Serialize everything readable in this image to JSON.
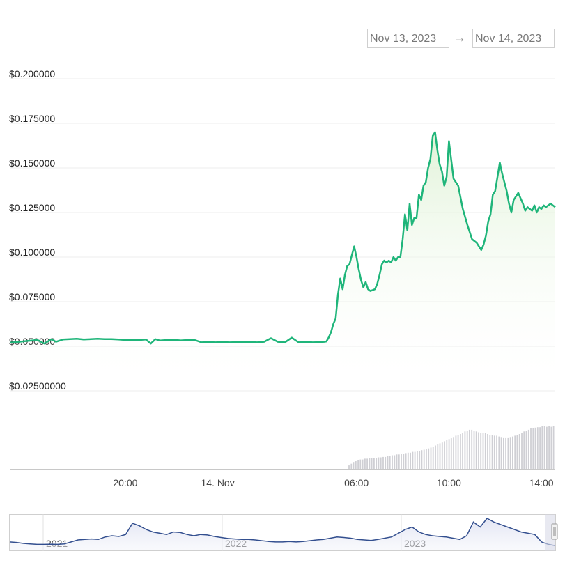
{
  "date_range": {
    "from": "Nov 13, 2023",
    "separator": "→",
    "to": "Nov 14, 2023"
  },
  "colors": {
    "price_line": "#1fb57a",
    "price_fill_top": "#dff2d6",
    "volume_bar": "#cfcfd4",
    "navigator_line": "#334f8f",
    "grid": "#ececec"
  },
  "chart_data": [
    {
      "type": "line",
      "name": "price",
      "ylim": [
        0.025,
        0.2
      ],
      "y_ticks": [
        "$0.200000",
        "$0.175000",
        "$0.150000",
        "$0.125000",
        "$0.100000",
        "$0.075000",
        "$0.050000",
        "$0.02500000"
      ],
      "y_tick_values": [
        0.2,
        0.175,
        0.15,
        0.125,
        0.1,
        0.075,
        0.05,
        0.025
      ],
      "x_ticks": [
        "20:00",
        "14. Nov",
        "06:00",
        "10:00",
        "14:00"
      ],
      "x_tick_values": [
        20,
        24,
        30,
        34,
        38
      ],
      "xlim": [
        15.0,
        38.6
      ],
      "x": [
        15.0,
        15.4,
        15.8,
        16.2,
        16.5,
        16.8,
        17.0,
        17.3,
        17.6,
        17.9,
        18.2,
        18.5,
        18.8,
        19.1,
        19.4,
        19.7,
        20.0,
        20.3,
        20.6,
        20.9,
        21.1,
        21.3,
        21.5,
        21.8,
        22.1,
        22.4,
        22.7,
        23.0,
        23.3,
        23.6,
        23.9,
        24.2,
        24.5,
        24.8,
        25.1,
        25.4,
        25.7,
        26.0,
        26.3,
        26.6,
        26.9,
        27.2,
        27.5,
        27.8,
        28.1,
        28.4,
        28.5,
        28.6,
        28.7,
        28.8,
        28.9,
        29.0,
        29.1,
        29.2,
        29.3,
        29.4,
        29.5,
        29.6,
        29.7,
        29.8,
        29.9,
        30.0,
        30.1,
        30.2,
        30.3,
        30.4,
        30.5,
        30.6,
        30.7,
        30.8,
        30.9,
        31.0,
        31.1,
        31.2,
        31.3,
        31.4,
        31.5,
        31.6,
        31.7,
        31.8,
        31.9,
        32.0,
        32.1,
        32.2,
        32.3,
        32.4,
        32.5,
        32.6,
        32.7,
        32.8,
        32.9,
        33.0,
        33.1,
        33.2,
        33.3,
        33.4,
        33.5,
        33.6,
        33.7,
        33.8,
        33.9,
        34.0,
        34.2,
        34.4,
        34.6,
        34.8,
        35.0,
        35.2,
        35.4,
        35.5,
        35.6,
        35.7,
        35.8,
        35.9,
        36.0,
        36.1,
        36.2,
        36.3,
        36.4,
        36.5,
        36.6,
        36.7,
        36.8,
        36.9,
        37.0,
        37.1,
        37.2,
        37.3,
        37.4,
        37.5,
        37.6,
        37.7,
        37.8,
        37.9,
        38.0,
        38.1,
        38.2,
        38.3,
        38.4,
        38.5,
        38.6
      ],
      "y": [
        0.052,
        0.0525,
        0.053,
        0.0535,
        0.0515,
        0.054,
        0.0525,
        0.0538,
        0.054,
        0.0542,
        0.0538,
        0.054,
        0.0542,
        0.054,
        0.054,
        0.0538,
        0.0535,
        0.0536,
        0.0535,
        0.0538,
        0.0515,
        0.054,
        0.0532,
        0.0535,
        0.0536,
        0.0533,
        0.0535,
        0.0535,
        0.0522,
        0.0524,
        0.0522,
        0.0524,
        0.0522,
        0.0523,
        0.0525,
        0.0524,
        0.0522,
        0.0525,
        0.0545,
        0.0525,
        0.0522,
        0.0548,
        0.0522,
        0.0525,
        0.0522,
        0.0523,
        0.0524,
        0.0525,
        0.0527,
        0.055,
        0.058,
        0.0625,
        0.0655,
        0.079,
        0.088,
        0.082,
        0.09,
        0.095,
        0.096,
        0.101,
        0.106,
        0.1,
        0.093,
        0.087,
        0.083,
        0.086,
        0.082,
        0.081,
        0.0815,
        0.082,
        0.085,
        0.09,
        0.096,
        0.098,
        0.097,
        0.098,
        0.097,
        0.1,
        0.098,
        0.1,
        0.1,
        0.11,
        0.124,
        0.115,
        0.13,
        0.118,
        0.122,
        0.122,
        0.135,
        0.132,
        0.14,
        0.142,
        0.15,
        0.155,
        0.168,
        0.17,
        0.16,
        0.152,
        0.148,
        0.14,
        0.145,
        0.165,
        0.144,
        0.14,
        0.127,
        0.118,
        0.11,
        0.108,
        0.104,
        0.107,
        0.112,
        0.12,
        0.124,
        0.135,
        0.137,
        0.145,
        0.153,
        0.147,
        0.142,
        0.137,
        0.13,
        0.125,
        0.132,
        0.134,
        0.136,
        0.133,
        0.13,
        0.126,
        0.128,
        0.127,
        0.126,
        0.129,
        0.125,
        0.128,
        0.127,
        0.129,
        0.128,
        0.129,
        0.13,
        0.129,
        0.128
      ]
    },
    {
      "type": "bar",
      "name": "volume",
      "relative_values": [
        0.0,
        0.0,
        0.0,
        0.0,
        0.0,
        0.0,
        0.0,
        0.0,
        0.0,
        0.0,
        0.0,
        0.0,
        0.0,
        0.0,
        0.0,
        0.0,
        0.0,
        0.0,
        0.0,
        0.0,
        0.0,
        0.0,
        0.0,
        0.0,
        0.0,
        0.0,
        0.0,
        0.0,
        0.0,
        0.0,
        0.0,
        0.0,
        0.0,
        0.0,
        0.0,
        0.0,
        0.0,
        0.0,
        0.0,
        0.0,
        0.0,
        0.0,
        0.0,
        0.0,
        0.0,
        0.0,
        0.0,
        0.0,
        0.0,
        0.0,
        0.0,
        0.0,
        0.0,
        0.0,
        0.0,
        0.0,
        0.0,
        0.0,
        0.0,
        0.0,
        0.0,
        0.0,
        0.0,
        0.0,
        0.0,
        0.0,
        0.0,
        0.0,
        0.0,
        0.0,
        0.0,
        0.0,
        0.0,
        0.0,
        0.0,
        0.0,
        0.0,
        0.0,
        0.0,
        0.0,
        0.0,
        0.0,
        0.0,
        0.0,
        0.0,
        0.0,
        0.0,
        0.0,
        0.0,
        0.0,
        0.0,
        0.0,
        0.0,
        0.0,
        0.0,
        0.0,
        0.0,
        0.0,
        0.0,
        0.0,
        0.0,
        0.0,
        0.0,
        0.0,
        0.0,
        0.0,
        0.0,
        0.0,
        0.0,
        0.0,
        0.0,
        0.0,
        0.0,
        0.0,
        0.0,
        0.0,
        0.0,
        0.0,
        0.0,
        0.0,
        0.0,
        0.0,
        0.0,
        0.0,
        0.0,
        0.0,
        0.0,
        0.0,
        0.0,
        0.0,
        0.0,
        0.0,
        0.0,
        0.0,
        0.0,
        0.0,
        0.0,
        0.0,
        0.0,
        0.0,
        0.0,
        0.0,
        0.0,
        0.0,
        0.0,
        0.0,
        0.0,
        0.0,
        0.0,
        0.08,
        0.12,
        0.16,
        0.18,
        0.2,
        0.22,
        0.22,
        0.24,
        0.24,
        0.25,
        0.25,
        0.26,
        0.26,
        0.27,
        0.27,
        0.28,
        0.28,
        0.3,
        0.3,
        0.32,
        0.32,
        0.34,
        0.34,
        0.36,
        0.36,
        0.37,
        0.38,
        0.38,
        0.4,
        0.4,
        0.42,
        0.42,
        0.44,
        0.45,
        0.46,
        0.48,
        0.5,
        0.52,
        0.55,
        0.58,
        0.6,
        0.62,
        0.65,
        0.68,
        0.7,
        0.72,
        0.75,
        0.78,
        0.8,
        0.82,
        0.85,
        0.88,
        0.9,
        0.92,
        0.92,
        0.9,
        0.88,
        0.86,
        0.85,
        0.84,
        0.84,
        0.82,
        0.8,
        0.8,
        0.78,
        0.78,
        0.76,
        0.75,
        0.74,
        0.74,
        0.74,
        0.75,
        0.76,
        0.78,
        0.8,
        0.82,
        0.85,
        0.88,
        0.9,
        0.92,
        0.95,
        0.96,
        0.97,
        0.98,
        0.98,
        1.0,
        1.0,
        0.99,
        1.0,
        0.99,
        1.0
      ]
    },
    {
      "type": "line",
      "name": "navigator",
      "x_ticks": [
        "2021",
        "2022",
        "2023"
      ],
      "relative_values": [
        0.2,
        0.18,
        0.14,
        0.12,
        0.1,
        0.1,
        0.11,
        0.1,
        0.12,
        0.2,
        0.28,
        0.3,
        0.32,
        0.3,
        0.4,
        0.45,
        0.42,
        0.5,
        0.95,
        0.85,
        0.7,
        0.6,
        0.55,
        0.5,
        0.6,
        0.58,
        0.5,
        0.45,
        0.5,
        0.48,
        0.42,
        0.38,
        0.34,
        0.32,
        0.3,
        0.3,
        0.28,
        0.25,
        0.22,
        0.2,
        0.2,
        0.22,
        0.2,
        0.22,
        0.25,
        0.28,
        0.3,
        0.35,
        0.4,
        0.38,
        0.35,
        0.3,
        0.28,
        0.26,
        0.3,
        0.35,
        0.4,
        0.55,
        0.7,
        0.8,
        0.6,
        0.5,
        0.45,
        0.42,
        0.4,
        0.35,
        0.3,
        0.45,
        1.0,
        0.8,
        1.15,
        1.0,
        0.9,
        0.8,
        0.7,
        0.6,
        0.55,
        0.5,
        0.2,
        0.1,
        0.05
      ]
    }
  ]
}
